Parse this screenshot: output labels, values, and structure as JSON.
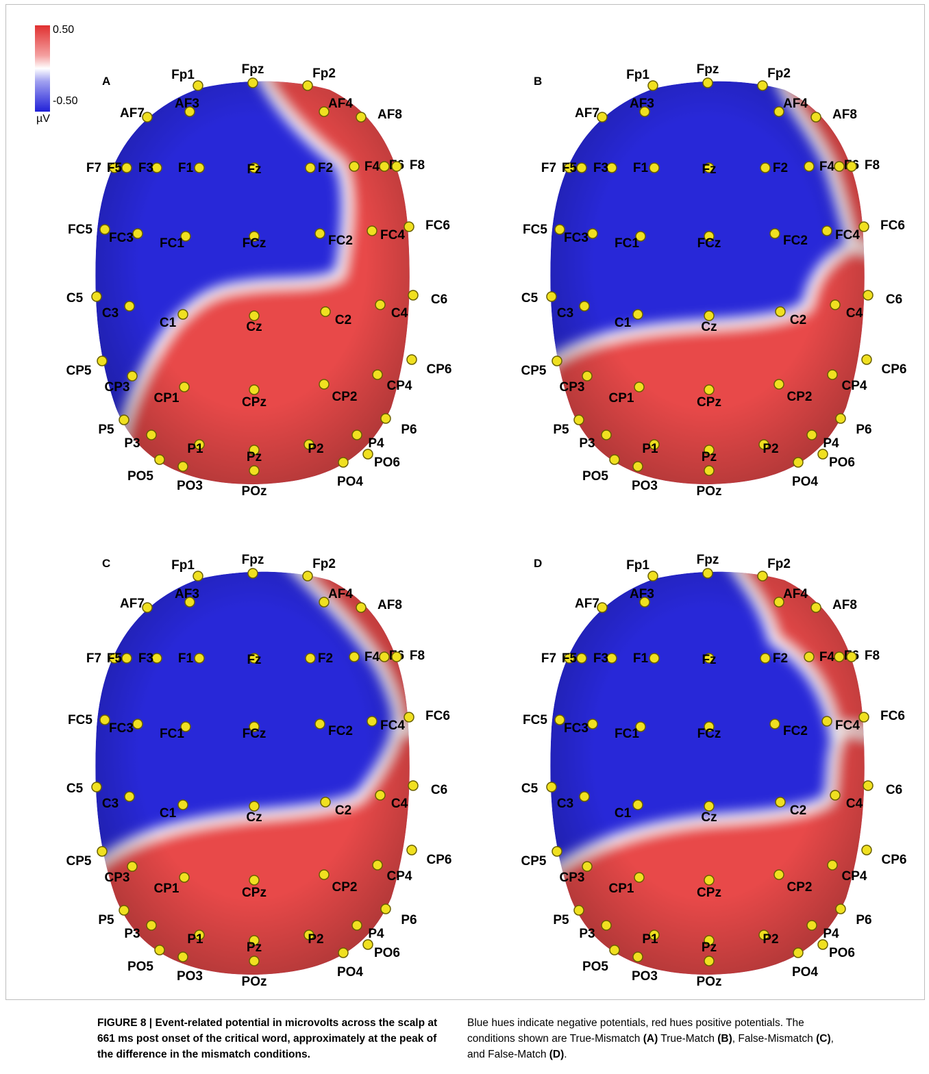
{
  "colorbar": {
    "max_label": "0.50",
    "min_label": "-0.50",
    "unit": "µV",
    "high_color": "#e03030",
    "low_color": "#2020d8",
    "mid_color": "#ffffff"
  },
  "panels": [
    {
      "label": "A",
      "condition": "True-Mismatch"
    },
    {
      "label": "B",
      "condition": "True-Match"
    },
    {
      "label": "C",
      "condition": "False-Mismatch"
    },
    {
      "label": "D",
      "condition": "False-Match"
    }
  ],
  "electrodes": [
    "Fp1",
    "Fpz",
    "Fp2",
    "AF7",
    "AF3",
    "AF4",
    "AF8",
    "F7",
    "F5",
    "F3",
    "F1",
    "Fz",
    "F2",
    "F4",
    "F6",
    "F8",
    "FC5",
    "FC3",
    "FC1",
    "FCz",
    "FC2",
    "FC4",
    "FC6",
    "C5",
    "C3",
    "C1",
    "Cz",
    "C2",
    "C4",
    "C6",
    "CP5",
    "CP3",
    "CP1",
    "CPz",
    "CP2",
    "CP4",
    "CP6",
    "P5",
    "P3",
    "P1",
    "Pz",
    "P2",
    "P4",
    "P6",
    "PO5",
    "PO3",
    "POz",
    "PO4",
    "PO6"
  ],
  "caption": {
    "figure_label": "FIGURE 8 | ",
    "title": "Event-related potential in microvolts across the scalp at 661 ms post onset of the critical word, approximately at the peak of the difference in the mismatch conditions.",
    "text_1": " Blue hues indicate negative potentials, red hues positive potentials. The conditions shown are True-Mismatch ",
    "ref_a": "(A)",
    "text_2": " True-Match ",
    "ref_b": "(B)",
    "text_3": ", False-Mismatch ",
    "ref_c": "(C)",
    "text_4": ", and False-Match ",
    "ref_d": "(D)",
    "text_5": "."
  }
}
